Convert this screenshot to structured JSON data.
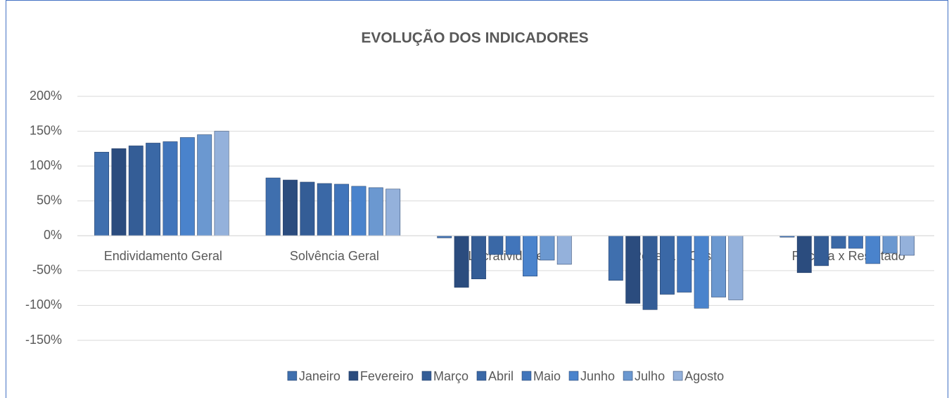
{
  "chart_data": {
    "type": "bar",
    "title": "EVOLUÇÃO DOS INDICADORES",
    "categories": [
      "Endividamento Geral",
      "Solvência Geral",
      "Lucratividade",
      "Receita x Custo",
      "Receita x Resultado"
    ],
    "series": [
      {
        "name": "Janeiro",
        "color": "#3f6fae",
        "values": [
          120,
          83,
          -3,
          -64,
          -2
        ]
      },
      {
        "name": "Fevereiro",
        "color": "#2b4c7e",
        "values": [
          125,
          80,
          -74,
          -97,
          -53
        ]
      },
      {
        "name": "Março",
        "color": "#345d96",
        "values": [
          129,
          77,
          -62,
          -106,
          -43
        ]
      },
      {
        "name": "Abril",
        "color": "#3a68a6",
        "values": [
          133,
          75,
          -27,
          -84,
          -18
        ]
      },
      {
        "name": "Maio",
        "color": "#4175bb",
        "values": [
          135,
          74,
          -27,
          -81,
          -18
        ]
      },
      {
        "name": "Junho",
        "color": "#4a83cc",
        "values": [
          141,
          71,
          -58,
          -104,
          -40
        ]
      },
      {
        "name": "Julho",
        "color": "#6b98d0",
        "values": [
          145,
          69,
          -35,
          -88,
          -25
        ]
      },
      {
        "name": "Agosto",
        "color": "#94b1db",
        "values": [
          150,
          67,
          -41,
          -92,
          -28
        ]
      }
    ],
    "ylim": [
      -150,
      200
    ],
    "yticks": [
      {
        "value": -150,
        "label": "-150%"
      },
      {
        "value": -100,
        "label": "-100%"
      },
      {
        "value": -50,
        "label": "-50%"
      },
      {
        "value": 0,
        "label": "0%"
      },
      {
        "value": 50,
        "label": "50%"
      },
      {
        "value": 100,
        "label": "100%"
      },
      {
        "value": 150,
        "label": "150%"
      },
      {
        "value": 200,
        "label": "200%"
      }
    ],
    "grid": true,
    "legend": "bottom"
  }
}
